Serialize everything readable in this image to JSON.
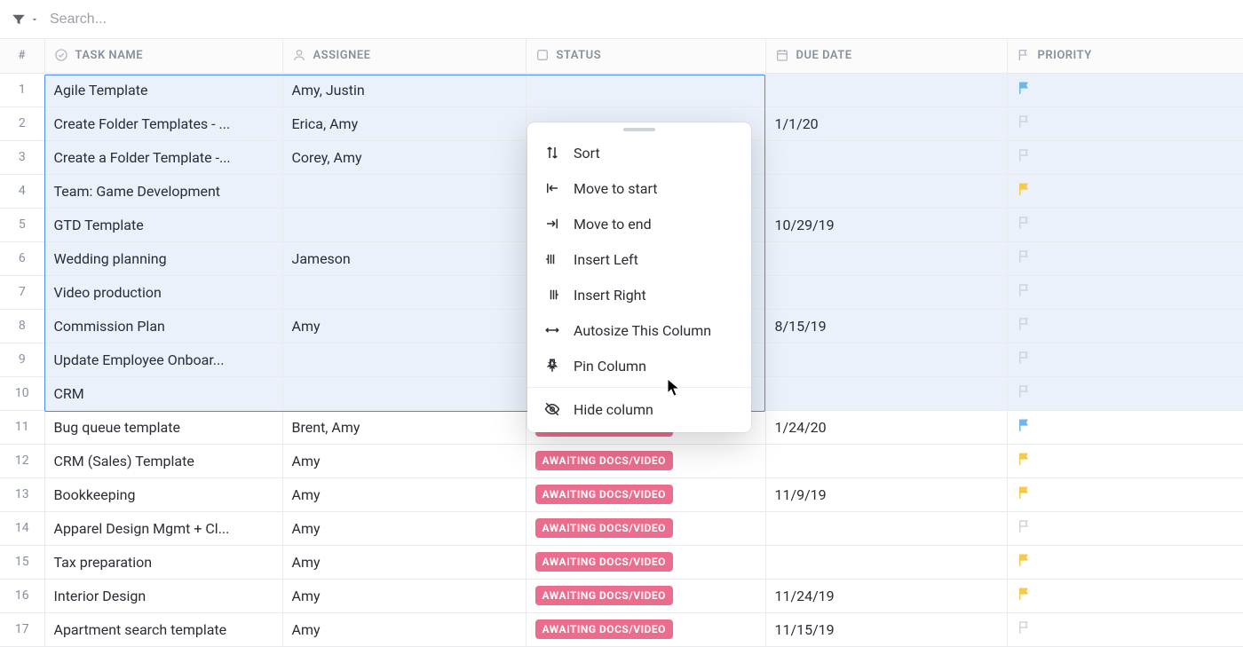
{
  "topbar": {
    "search_placeholder": "Search..."
  },
  "columns": {
    "number": "#",
    "task": "TASK NAME",
    "assignee": "ASSIGNEE",
    "status": "STATUS",
    "due": "DUE DATE",
    "priority": "PRIORITY"
  },
  "status_badge_text": "AWAITING DOCS/VIDEO",
  "status_badge_color": "#ec6c8d",
  "flag_colors": {
    "blue": "#6fb7eb",
    "gray": "#cfd3da",
    "yellow": "#f7c948"
  },
  "rows": [
    {
      "num": "1",
      "task": "Agile Template",
      "assignee": "Amy, Justin",
      "status": "",
      "due": "",
      "flag": "blue",
      "selected": true
    },
    {
      "num": "2",
      "task": "Create Folder Templates - ...",
      "assignee": "Erica, Amy",
      "status": "",
      "due": "1/1/20",
      "flag": "gray",
      "selected": true
    },
    {
      "num": "3",
      "task": "Create a Folder Template -...",
      "assignee": "Corey, Amy",
      "status": "",
      "due": "",
      "flag": "gray",
      "selected": true
    },
    {
      "num": "4",
      "task": "Team: Game Development",
      "assignee": "",
      "status": "",
      "due": "",
      "flag": "yellow",
      "selected": true
    },
    {
      "num": "5",
      "task": "GTD Template",
      "assignee": "",
      "status": "",
      "due": "10/29/19",
      "flag": "gray",
      "selected": true
    },
    {
      "num": "6",
      "task": "Wedding planning",
      "assignee": "Jameson",
      "status": "",
      "due": "",
      "flag": "gray",
      "selected": true
    },
    {
      "num": "7",
      "task": "Video production",
      "assignee": "",
      "status": "",
      "due": "",
      "flag": "gray",
      "selected": true
    },
    {
      "num": "8",
      "task": "Commission Plan",
      "assignee": "Amy",
      "status": "",
      "due": "8/15/19",
      "flag": "gray",
      "selected": true
    },
    {
      "num": "9",
      "task": "Update Employee Onboar...",
      "assignee": "",
      "status": "",
      "due": "",
      "flag": "gray",
      "selected": true
    },
    {
      "num": "10",
      "task": "CRM",
      "assignee": "",
      "status": "",
      "due": "",
      "flag": "gray",
      "selected": true
    },
    {
      "num": "11",
      "task": "Bug queue template",
      "assignee": "Brent, Amy",
      "status": "badge",
      "due": "1/24/20",
      "flag": "blue",
      "selected": false
    },
    {
      "num": "12",
      "task": "CRM (Sales) Template",
      "assignee": "Amy",
      "status": "badge",
      "due": "",
      "flag": "yellow",
      "selected": false
    },
    {
      "num": "13",
      "task": "Bookkeeping",
      "assignee": "Amy",
      "status": "badge",
      "due": "11/9/19",
      "flag": "yellow",
      "selected": false
    },
    {
      "num": "14",
      "task": "Apparel Design Mgmt + Cl...",
      "assignee": "Amy",
      "status": "badge",
      "due": "",
      "flag": "gray",
      "selected": false
    },
    {
      "num": "15",
      "task": "Tax preparation",
      "assignee": "Amy",
      "status": "badge",
      "due": "",
      "flag": "yellow",
      "selected": false
    },
    {
      "num": "16",
      "task": "Interior Design",
      "assignee": "Amy",
      "status": "badge",
      "due": "11/24/19",
      "flag": "yellow",
      "selected": false
    },
    {
      "num": "17",
      "task": "Apartment search template",
      "assignee": "Amy",
      "status": "badge",
      "due": "11/15/19",
      "flag": "gray",
      "selected": false
    }
  ],
  "menu": {
    "sort": "Sort",
    "move_start": "Move to start",
    "move_end": "Move to end",
    "insert_left": "Insert Left",
    "insert_right": "Insert Right",
    "autosize": "Autosize This Column",
    "pin": "Pin Column",
    "hide": "Hide column"
  }
}
